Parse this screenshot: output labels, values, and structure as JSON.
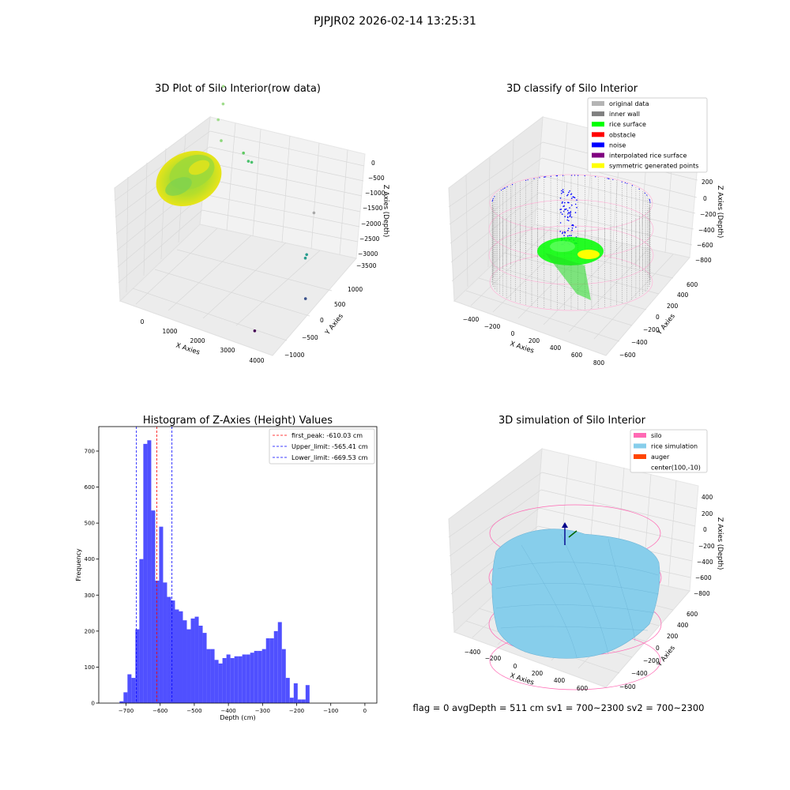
{
  "suptitle": "PJPJR02 2026-02-14 13:25:31",
  "footer": "flag = 0     avgDepth = 511 cm  sv1 = 700~2300  sv2 = 700~2300",
  "colors": {
    "hist_bar": "#5050ff",
    "peak_line": "#ff0000",
    "limit_line": "#0000ff",
    "pane_fill": "#f2f2f2",
    "grid": "#d8d8d8",
    "silo_wire": "#ff69b4",
    "rice_sim": "#87ceeb",
    "rice_surface": "#00ff00",
    "noise": "#0000ff",
    "wall": "#808080",
    "symmetric": "#ffff00",
    "interpolated": "#800080",
    "obstacle": "#ff0000",
    "auger": "#ff4500"
  },
  "chart_data": [
    {
      "id": "raw",
      "type": "scatter",
      "projection": "3d",
      "title": "3D Plot of Silo Interior(row data)",
      "xlabel": "X Axies",
      "ylabel": "Y Axies",
      "zlabel": "Z Axies (Depth)",
      "x_ticks": [
        "0",
        "1000",
        "2000",
        "3000",
        "4000"
      ],
      "y_ticks": [
        "−1000",
        "−500",
        "0",
        "500",
        "1000"
      ],
      "z_ticks": [
        "0",
        "−500",
        "−1000",
        "−1500",
        "−2000",
        "−2500",
        "−3000",
        "−3500"
      ],
      "xlim": [
        -500,
        4300
      ],
      "ylim": [
        -1100,
        1200
      ],
      "zlim": [
        -3600,
        100
      ],
      "grid": true,
      "color_by": "depth (viridis)",
      "outliers": [
        {
          "x": 400,
          "y": 1050,
          "z": -100,
          "color": "#a0dc8c"
        },
        {
          "x": 450,
          "y": 1000,
          "z": -450,
          "color": "#a0dc8c"
        },
        {
          "x": 350,
          "y": 950,
          "z": -800,
          "color": "#a0dc8c"
        },
        {
          "x": 500,
          "y": 900,
          "z": -1200,
          "color": "#8cd77a"
        },
        {
          "x": 1200,
          "y": 900,
          "z": -1300,
          "color": "#5ec962"
        },
        {
          "x": 1300,
          "y": 950,
          "z": -1500,
          "color": "#4ac16d"
        },
        {
          "x": 1350,
          "y": 1000,
          "z": -1550,
          "color": "#4ac16d"
        },
        {
          "x": 3200,
          "y": 1100,
          "z": -2300,
          "color": "#a8a8a8"
        },
        {
          "x": 3300,
          "y": 800,
          "z": -3000,
          "color": "#2a9d8f"
        },
        {
          "x": 3300,
          "y": 760,
          "z": -3050,
          "color": "#2a9d8f"
        },
        {
          "x": 3700,
          "y": 400,
          "z": -3600,
          "color": "#3b528b"
        },
        {
          "x": 3300,
          "y": -700,
          "z": -3600,
          "color": "#440154"
        }
      ]
    },
    {
      "id": "classify",
      "type": "scatter",
      "projection": "3d",
      "title": "3D classify of Silo Interior",
      "xlabel": "X Axies",
      "ylabel": "Y Axies",
      "zlabel": "Z Axies (Depth)",
      "x_ticks": [
        "−400",
        "−200",
        "0",
        "200",
        "400",
        "600",
        "800"
      ],
      "y_ticks": [
        "−600",
        "−400",
        "−200",
        "0",
        "200",
        "400",
        "600"
      ],
      "z_ticks": [
        "200",
        "0",
        "−200",
        "−400",
        "−600",
        "−800"
      ],
      "legend": [
        {
          "label": "original data",
          "color": "#b4b4b4"
        },
        {
          "label": "inner wall",
          "color": "#808080"
        },
        {
          "label": "rice surface",
          "color": "#00ff00"
        },
        {
          "label": "obstacle",
          "color": "#ff0000"
        },
        {
          "label": "noise",
          "color": "#0000ff"
        },
        {
          "label": "interpolated rice surface",
          "color": "#800080"
        },
        {
          "label": "symmetric generated points",
          "color": "#ffff00"
        }
      ],
      "legend_loc": "upper right",
      "grid": true
    },
    {
      "id": "hist",
      "type": "bar",
      "title": "Histogram of Z-Axies (Height) Values",
      "xlabel": "Depth (cm)",
      "ylabel": "Frequency",
      "x_ticks": [
        "−700",
        "−600",
        "−500",
        "−400",
        "−300",
        "−200",
        "−100",
        "0"
      ],
      "y_ticks": [
        "0",
        "100",
        "200",
        "300",
        "400",
        "500",
        "600",
        "700"
      ],
      "xlim": [
        -780,
        35
      ],
      "ylim": [
        0,
        768
      ],
      "bin_width": 11.6,
      "bins_start": -719,
      "values": [
        5,
        30,
        80,
        70,
        205,
        400,
        720,
        730,
        535,
        340,
        490,
        335,
        295,
        285,
        260,
        255,
        230,
        205,
        235,
        240,
        215,
        195,
        150,
        150,
        120,
        110,
        125,
        135,
        125,
        130,
        130,
        135,
        135,
        140,
        145,
        145,
        150,
        180,
        180,
        200,
        225,
        150,
        70,
        15,
        55,
        10,
        10,
        50
      ],
      "vlines": [
        {
          "x": -610.03,
          "style": "peak",
          "label": "first_peak: -610.03 cm"
        },
        {
          "x": -565.41,
          "style": "limit",
          "label": "Upper_limit: -565.41 cm"
        },
        {
          "x": -669.53,
          "style": "limit",
          "label": "Lower_limit: -669.53 cm"
        }
      ],
      "legend_loc": "upper right",
      "grid": false
    },
    {
      "id": "sim",
      "type": "surface",
      "projection": "3d",
      "title": "3D simulation of Silo Interior",
      "xlabel": "X Axies",
      "ylabel": "Y Axies",
      "zlabel": "Z Axies (Depth)",
      "x_ticks": [
        "−400",
        "−200",
        "0",
        "200",
        "400",
        "600"
      ],
      "y_ticks": [
        "−600",
        "−400",
        "−200",
        "0",
        "200",
        "400",
        "600"
      ],
      "z_ticks": [
        "400",
        "200",
        "0",
        "−200",
        "−400",
        "−600",
        "−800"
      ],
      "legend": [
        {
          "label": "silo",
          "color": "#ff69b4"
        },
        {
          "label": "rice simulation",
          "color": "#87ceeb"
        },
        {
          "label": "auger",
          "color": "#ff4500"
        },
        {
          "label": "center(100,-10)",
          "color": ""
        }
      ],
      "legend_loc": "upper right",
      "grid": true
    }
  ]
}
